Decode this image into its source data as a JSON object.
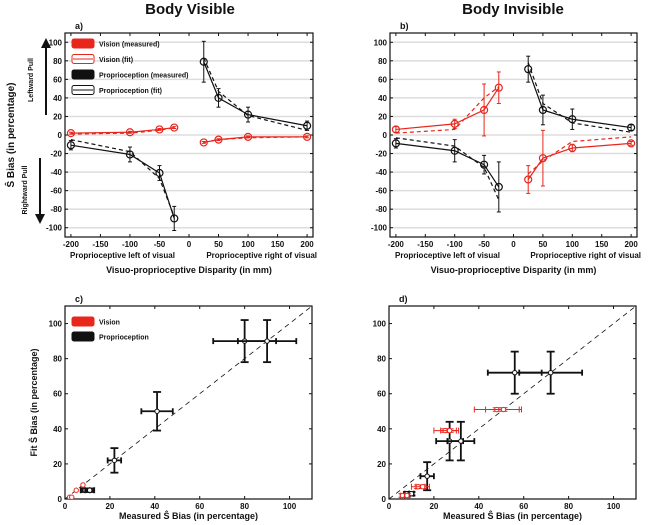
{
  "titles": {
    "left": "Body Visible",
    "right": "Body Invisible"
  },
  "y_label_top": "Ŝ Bias (in percentage)",
  "leftward_pull": "Leftward Pull",
  "rightward_pull": "Rightward Pull",
  "colors": {
    "vision": "#e8261c",
    "proprioception": "#111111",
    "grid": "#dddddd"
  },
  "chart_data": [
    {
      "panel": "a)",
      "type": "line",
      "xlabel": "Visuo-proprioceptive Disparity (in mm)",
      "xsub": [
        "Proprioceptive left of visual",
        "Proprioceptive right of visual"
      ],
      "xlim": [
        -210,
        210
      ],
      "ylim": [
        -110,
        110
      ],
      "xticks": [
        -200,
        -150,
        -100,
        -50,
        0,
        50,
        100,
        150,
        200
      ],
      "yticks": [
        -100,
        -80,
        -60,
        -40,
        -20,
        0,
        20,
        40,
        60,
        80,
        100
      ],
      "grid": true,
      "legend": [
        "Vision (measured)",
        "Vision (fit)",
        "Proprioception (measured)",
        "Proprioception (fit)"
      ],
      "legend_position": "top-left",
      "series": [
        {
          "name": "Vision (measured)",
          "segments": [
            {
              "x": [
                -200,
                -100,
                -50,
                -25
              ],
              "y": [
                2,
                3,
                6,
                8
              ],
              "err": [
                1,
                1,
                1,
                1
              ]
            },
            {
              "x": [
                25,
                50,
                100,
                200
              ],
              "y": [
                -8,
                -5,
                -2,
                -2
              ],
              "err": [
                1,
                1,
                1,
                1
              ]
            }
          ]
        },
        {
          "name": "Vision (fit)",
          "segments": [
            {
              "x": [
                -200,
                -100,
                -50,
                -25
              ],
              "y": [
                1,
                2,
                5,
                8
              ]
            },
            {
              "x": [
                25,
                50,
                100,
                200
              ],
              "y": [
                -8,
                -5,
                -3,
                -2
              ]
            }
          ]
        },
        {
          "name": "Proprioception (measured)",
          "segments": [
            {
              "x": [
                -200,
                -100,
                -50,
                -25
              ],
              "y": [
                -11,
                -21,
                -41,
                -90
              ],
              "err": [
                5,
                8,
                8,
                13
              ]
            },
            {
              "x": [
                25,
                50,
                100,
                200
              ],
              "y": [
                79,
                40,
                22,
                10
              ],
              "err": [
                22,
                10,
                8,
                5
              ]
            }
          ]
        },
        {
          "name": "Proprioception (fit)",
          "segments": [
            {
              "x": [
                -200,
                -100,
                -50,
                -25
              ],
              "y": [
                -5,
                -18,
                -47,
                -88
              ]
            },
            {
              "x": [
                25,
                50,
                100,
                200
              ],
              "y": [
                83,
                47,
                21,
                5
              ]
            }
          ]
        }
      ]
    },
    {
      "panel": "b)",
      "type": "line",
      "xlabel": "Visuo-proprioceptive Disparity (in mm)",
      "xsub": [
        "Proprioceptive left of visual",
        "Proprioceptive right of visual"
      ],
      "xlim": [
        -210,
        210
      ],
      "ylim": [
        -110,
        110
      ],
      "xticks": [
        -200,
        -150,
        -100,
        -50,
        0,
        50,
        100,
        150,
        200
      ],
      "yticks": [
        -100,
        -80,
        -60,
        -40,
        -20,
        0,
        20,
        40,
        60,
        80,
        100
      ],
      "grid": true,
      "series": [
        {
          "name": "Vision (measured)",
          "segments": [
            {
              "x": [
                -200,
                -100,
                -50,
                -25
              ],
              "y": [
                6,
                12,
                27,
                51
              ],
              "err": [
                3,
                5,
                28,
                17
              ]
            },
            {
              "x": [
                25,
                50,
                100,
                200
              ],
              "y": [
                -48,
                -25,
                -14,
                -9
              ],
              "err": [
                15,
                30,
                4,
                2
              ]
            }
          ]
        },
        {
          "name": "Vision (fit)",
          "segments": [
            {
              "x": [
                -200,
                -100,
                -50,
                -25
              ],
              "y": [
                2,
                6,
                40,
                52
              ]
            },
            {
              "x": [
                25,
                50,
                100,
                200
              ],
              "y": [
                -42,
                -28,
                -7,
                -2
              ]
            }
          ]
        },
        {
          "name": "Proprioception (measured)",
          "segments": [
            {
              "x": [
                -200,
                -100,
                -50,
                -25
              ],
              "y": [
                -9,
                -17,
                -32,
                -56
              ],
              "err": [
                5,
                12,
                10,
                27
              ]
            },
            {
              "x": [
                25,
                50,
                100,
                200
              ],
              "y": [
                71,
                27,
                17,
                8
              ],
              "err": [
                14,
                16,
                11,
                3
              ]
            }
          ]
        },
        {
          "name": "Proprioception (fit)",
          "segments": [
            {
              "x": [
                -200,
                -100,
                -50,
                -25
              ],
              "y": [
                -3,
                -12,
                -35,
                -70
              ]
            },
            {
              "x": [
                25,
                50,
                100,
                200
              ],
              "y": [
                78,
                34,
                13,
                3
              ]
            }
          ]
        }
      ]
    },
    {
      "panel": "c)",
      "type": "scatter",
      "xlabel": "Measured Ŝ Bias (in percentage)",
      "ylabel": "Fit Ŝ Bias (in percentage)",
      "xlim": [
        0,
        110
      ],
      "ylim": [
        0,
        110
      ],
      "xticks": [
        0,
        20,
        40,
        60,
        80,
        100
      ],
      "yticks": [
        0,
        20,
        40,
        60,
        80,
        100
      ],
      "legend": [
        "Vision",
        "Proprioception"
      ],
      "legend_position": "top-left",
      "series": [
        {
          "name": "Proprioception",
          "points": [
            [
              80,
              90,
              14,
              12
            ],
            [
              90,
              90,
              13,
              12
            ],
            [
              41,
              50,
              7,
              11
            ],
            [
              22,
              22,
              3,
              7
            ],
            [
              9,
              5,
              2,
              1
            ],
            [
              11,
              5,
              2,
              1
            ]
          ]
        },
        {
          "name": "Vision",
          "points": [
            [
              2,
              1,
              0,
              0
            ],
            [
              3,
              1,
              0,
              0
            ],
            [
              5,
              5,
              0,
              0
            ],
            [
              8,
              8,
              0,
              0
            ]
          ]
        }
      ]
    },
    {
      "panel": "d)",
      "type": "scatter",
      "xlabel": "Measured Ŝ Bias (in percentage)",
      "xlim": [
        0,
        110
      ],
      "ylim": [
        0,
        110
      ],
      "xticks": [
        0,
        20,
        40,
        60,
        80,
        100
      ],
      "yticks": [
        0,
        20,
        40,
        60,
        80,
        100
      ],
      "series": [
        {
          "name": "Proprioception",
          "points": [
            [
              56,
              72,
              12,
              12
            ],
            [
              72,
              72,
              14,
              12
            ],
            [
              27,
              33,
              6,
              11
            ],
            [
              32,
              33,
              6,
              11
            ],
            [
              17,
              13,
              3,
              8
            ],
            [
              8,
              3,
              1,
              1
            ],
            [
              10,
              3,
              1,
              1
            ]
          ]
        },
        {
          "name": "Vision",
          "points": [
            [
              48,
              51,
              10,
              1
            ],
            [
              51,
              51,
              8,
              1
            ],
            [
              25,
              39,
              5,
              1
            ],
            [
              27,
              39,
              4,
              1
            ],
            [
              13,
              7,
              3,
              1
            ],
            [
              15,
              7,
              3,
              1
            ],
            [
              6,
              2,
              1,
              1
            ],
            [
              8,
              2,
              1,
              1
            ]
          ]
        }
      ]
    }
  ]
}
